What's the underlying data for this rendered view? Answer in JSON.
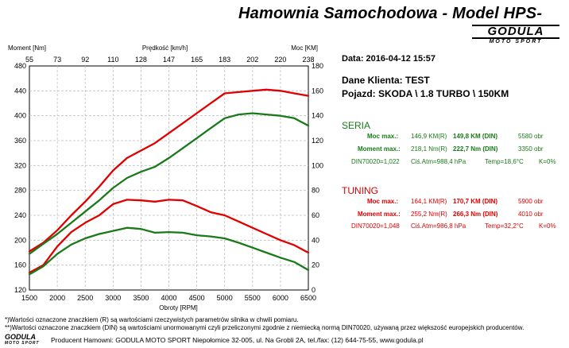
{
  "header": {
    "title": "Hamownia Samochodowa  -  Model HPS-",
    "brand_name": "GODULA",
    "brand_sub": "MOTO SPORT"
  },
  "info": {
    "date": "Data: 2016-04-12  15:57",
    "client": "Dane Klienta: TEST",
    "vehicle": "Pojazd: SKODA \\ 1.8 TURBO \\ 150KM"
  },
  "seria": {
    "title": "SERIA",
    "power_label": "Moc max.:",
    "power_r": "146,9 KM(R)",
    "power_din": "149,8 KM (DIN)",
    "power_rpm": "5580 obr",
    "torque_label": "Moment max.:",
    "torque_r": "218,1 Nm(R)",
    "torque_din": "222,7 Nm (DIN)",
    "torque_rpm": "3350 obr",
    "din": "DIN70020=1,022",
    "atm": "Ciś.Atm=988,4 hPa",
    "temp": "Temp=18,6°C",
    "k": "K=0%",
    "color": "#1a7a1a"
  },
  "tuning": {
    "title": "TUNING",
    "power_label": "Moc max.:",
    "power_r": "164,1 KM(R)",
    "power_din": "170,7 KM (DIN)",
    "power_rpm": "5900 obr",
    "torque_label": "Moment max.:",
    "torque_r": "255,2 Nm(R)",
    "torque_din": "266,3 Nm (DIN)",
    "torque_rpm": "4010 obr",
    "din": "DIN70020=1,048",
    "atm": "Ciś.Atm=986,8 hPa",
    "temp": "Temp=32,2°C",
    "k": "K=0%",
    "color": "#e00000"
  },
  "footnotes": {
    "line1": "*)Wartości oznaczone znaczkiem (R) są wartościami rzeczywistych parametrów silnika w chwili pomiaru.",
    "line2": "**)Wartości oznaczone znaczkiem (DIN) są wartościami unormowanymi czyli przeliczonymi zgodnie z niemiecką normą DIN70020, używaną przez większość europejskich producentów."
  },
  "footer": {
    "logo_name": "GODULA",
    "logo_sub": "MOTO SPORT",
    "text": "Producent Hamowni: GODULA MOTO SPORT Niepołomice 32-005, ul. Na Grobli 2A, tel./fax: (12) 644-75-55, www.godula.pl"
  },
  "chart_data": {
    "type": "line",
    "xlabel": "Obroty [RPM]",
    "x_top_label": "Prędkość [km/h]",
    "y_left_label": "Moment [Nm]",
    "y_right_label": "Moc [KM]",
    "xlim": [
      1500,
      6500
    ],
    "ylim_left": [
      120,
      480
    ],
    "ylim_right": [
      0,
      180
    ],
    "x_ticks": [
      1500,
      2000,
      2500,
      3000,
      3500,
      4000,
      4500,
      5000,
      5500,
      6000,
      6500
    ],
    "y_left_ticks": [
      120,
      160,
      200,
      240,
      280,
      320,
      360,
      400,
      440,
      480
    ],
    "y_right_ticks": [
      0,
      20,
      40,
      60,
      80,
      100,
      120,
      140,
      160,
      180
    ],
    "x_top_ticks": [
      "55",
      "73",
      "92",
      "110",
      "128",
      "147",
      "165",
      "183",
      "202",
      "220",
      "238"
    ],
    "grid": true,
    "series": [
      {
        "axis": "right",
        "color": "#e00000",
        "x": [
          1500,
          1750,
          2000,
          2250,
          2500,
          2750,
          3000,
          3250,
          3500,
          3750,
          4000,
          4250,
          4500,
          4750,
          5000,
          5250,
          5500,
          5750,
          6000,
          6250,
          6500
        ],
        "values": [
          31,
          38,
          48,
          60,
          71,
          83,
          96,
          106,
          112,
          118,
          126,
          134,
          142,
          150,
          158,
          159,
          160,
          161,
          160,
          158,
          156
        ]
      },
      {
        "axis": "right",
        "color": "#1a7a1a",
        "x": [
          1500,
          1750,
          2000,
          2250,
          2500,
          2750,
          3000,
          3250,
          3500,
          3750,
          4000,
          4250,
          4500,
          4750,
          5000,
          5250,
          5500,
          5750,
          6000,
          6250,
          6500
        ],
        "values": [
          29,
          37,
          45,
          54,
          63,
          72,
          82,
          90,
          95,
          99,
          106,
          114,
          122,
          130,
          138,
          141,
          142,
          141,
          140,
          138,
          132
        ]
      },
      {
        "axis": "left",
        "color": "#e00000",
        "x": [
          1500,
          1750,
          2000,
          2250,
          2500,
          2750,
          3000,
          3250,
          3500,
          3750,
          4000,
          4250,
          4500,
          4750,
          5000,
          5250,
          5500,
          5750,
          6000,
          6250,
          6500
        ],
        "values": [
          148,
          160,
          190,
          213,
          228,
          240,
          258,
          265,
          264,
          262,
          265,
          264,
          255,
          245,
          240,
          230,
          220,
          210,
          200,
          192,
          180
        ]
      },
      {
        "axis": "left",
        "color": "#1a7a1a",
        "x": [
          1500,
          1750,
          2000,
          2250,
          2500,
          2750,
          3000,
          3250,
          3500,
          3750,
          4000,
          4250,
          4500,
          4750,
          5000,
          5250,
          5500,
          5750,
          6000,
          6250,
          6500
        ],
        "values": [
          145,
          158,
          178,
          193,
          203,
          210,
          215,
          220,
          218,
          212,
          213,
          212,
          208,
          206,
          203,
          196,
          188,
          180,
          172,
          165,
          152
        ]
      }
    ]
  }
}
